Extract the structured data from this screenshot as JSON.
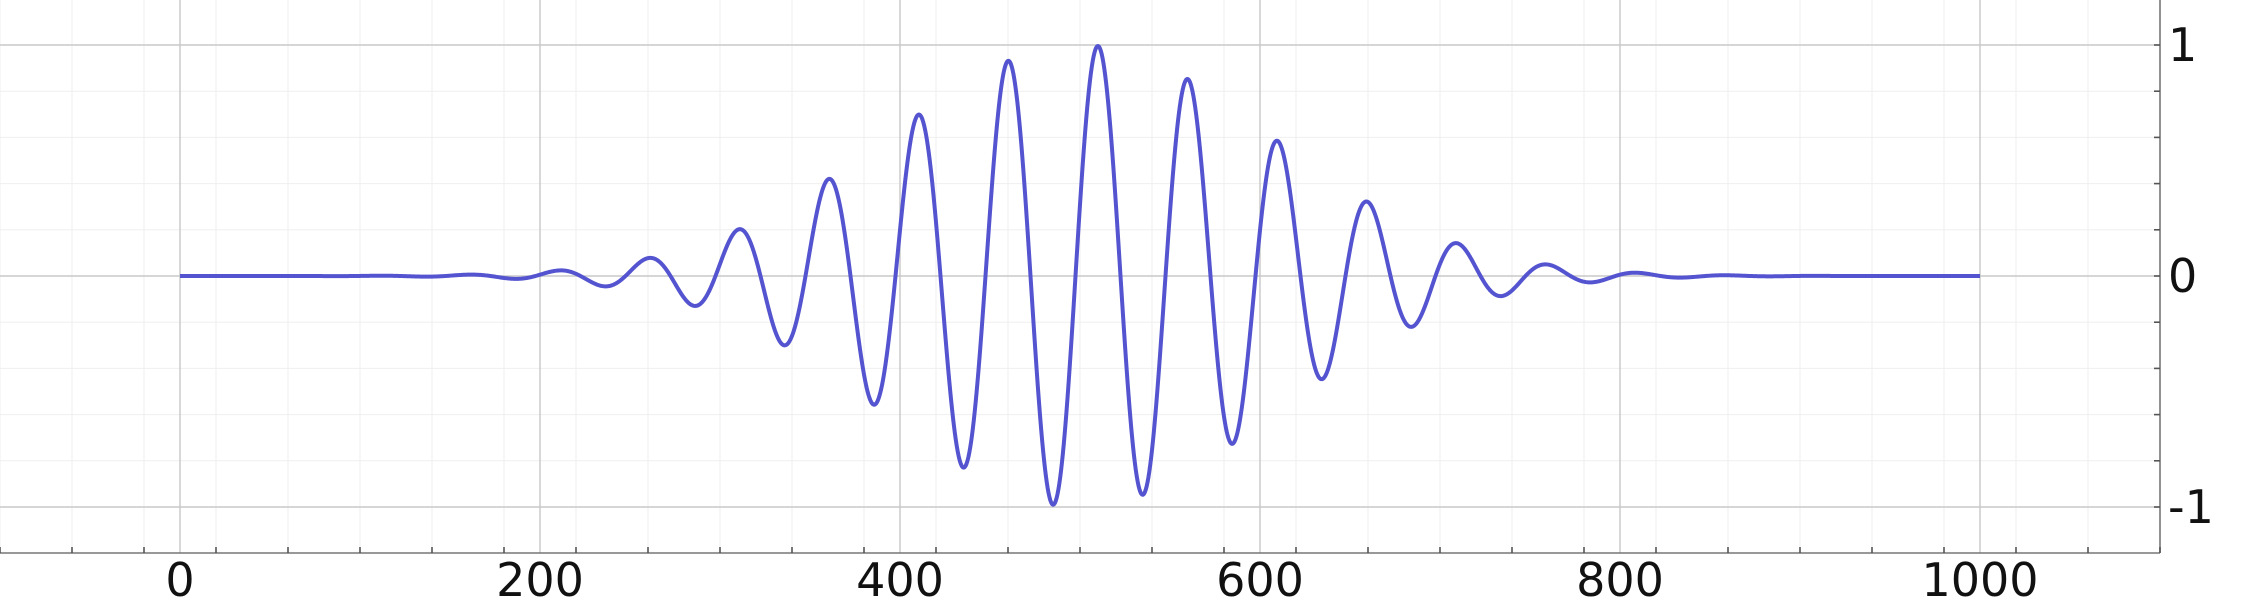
{
  "chart_data": {
    "type": "line",
    "title": "",
    "xlabel": "",
    "ylabel": "",
    "xlim": [
      -145,
      1100
    ],
    "ylim": [
      -1.2,
      1.1
    ],
    "x_ticks": [
      0,
      200,
      400,
      600,
      800,
      1000
    ],
    "x_tick_labels": [
      "0",
      "200",
      "400",
      "600",
      "800",
      "1000"
    ],
    "y_ticks": [
      1,
      0,
      -1
    ],
    "y_tick_labels": [
      "1",
      "0",
      "-1"
    ],
    "y_axis_position": "right",
    "grid": true,
    "legend": "none",
    "series": [
      {
        "color": "#5454d0",
        "x_range": [
          0,
          1000
        ],
        "points": 2001,
        "formula": "exp(-((x-500)/150)^2) * cos(2*pi*(x-510)/50)"
      }
    ]
  }
}
